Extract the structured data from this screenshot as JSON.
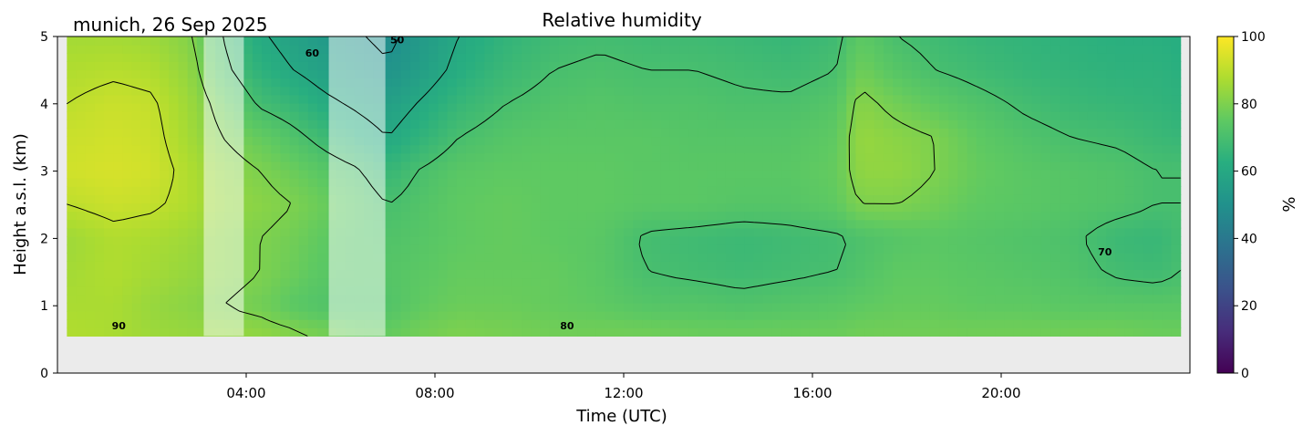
{
  "chart_data": {
    "type": "heatmap",
    "title": "Relative humidity",
    "subtitle": "munich, 26 Sep 2025",
    "xlabel": "Time (UTC)",
    "ylabel": "Height a.s.l. (km)",
    "xlim_hours": [
      0,
      24
    ],
    "ylim_km": [
      0,
      5
    ],
    "x_ticks_hours": [
      4,
      8,
      12,
      16,
      20
    ],
    "x_tick_labels": [
      "04:00",
      "08:00",
      "12:00",
      "16:00",
      "20:00"
    ],
    "y_ticks": [
      0,
      1,
      2,
      3,
      4,
      5
    ],
    "y_tick_labels": [
      "0",
      "1",
      "2",
      "3",
      "4",
      "5"
    ],
    "data_bottom_km": 0.55,
    "data_start_hour": 0.2,
    "data_end_hour": 23.8,
    "colorbar": {
      "label": "%",
      "range": [
        0,
        100
      ],
      "ticks": [
        0,
        20,
        40,
        60,
        80,
        100
      ],
      "tick_labels": [
        "0",
        "20",
        "40",
        "60",
        "80",
        "100"
      ],
      "colormap": "viridis"
    },
    "contour_levels": [
      50,
      60,
      70,
      80,
      90
    ],
    "contour_labels": [
      {
        "text": "90",
        "hour": 1.3,
        "km": 0.65
      },
      {
        "text": "80",
        "hour": 10.8,
        "km": 0.65
      },
      {
        "text": "60",
        "hour": 5.4,
        "km": 4.7
      },
      {
        "text": "50",
        "hour": 7.2,
        "km": 4.9
      },
      {
        "text": "70",
        "hour": 22.2,
        "km": 1.75
      }
    ],
    "masked_periods_hours": [
      [
        3.1,
        3.95
      ],
      [
        5.75,
        6.95
      ]
    ],
    "rh_samples": {
      "hours": [
        0.2,
        1.2,
        2.0,
        2.8,
        3.5,
        4.3,
        5.0,
        5.6,
        6.3,
        7.0,
        7.6,
        8.5,
        9.5,
        10.5,
        11.5,
        12.5,
        13.5,
        14.5,
        15.5,
        16.5,
        17.0,
        17.8,
        18.6,
        19.5,
        20.5,
        21.5,
        22.5,
        23.3,
        23.8
      ],
      "heights_km": [
        0.6,
        1.0,
        1.5,
        2.0,
        2.5,
        3.0,
        3.5,
        4.0,
        4.5,
        5.0
      ],
      "values": [
        [
          88,
          87,
          85,
          84,
          84,
          83,
          81,
          79,
          77,
          76,
          78,
          80,
          79,
          78,
          78,
          78,
          77,
          77,
          77,
          77,
          78,
          78,
          78,
          78,
          78,
          78,
          78,
          77,
          77
        ],
        [
          87,
          87,
          84,
          82,
          80,
          78,
          74,
          72,
          72,
          72,
          75,
          77,
          77,
          76,
          75,
          73,
          73,
          72,
          73,
          74,
          75,
          76,
          76,
          75,
          75,
          74,
          74,
          74,
          74
        ],
        [
          86,
          88,
          86,
          84,
          82,
          80,
          77,
          74,
          73,
          73,
          74,
          76,
          76,
          76,
          74,
          70,
          69,
          68,
          69,
          70,
          72,
          75,
          75,
          74,
          73,
          72,
          69,
          68,
          70
        ],
        [
          85,
          88,
          87,
          85,
          82,
          80,
          78,
          75,
          73,
          72,
          73,
          75,
          76,
          75,
          74,
          69,
          68,
          67,
          68,
          69,
          71,
          73,
          74,
          73,
          72,
          71,
          67,
          66,
          69
        ],
        [
          90,
          92,
          91,
          88,
          84,
          82,
          80,
          77,
          74,
          70,
          72,
          75,
          76,
          75,
          75,
          74,
          74,
          73,
          73,
          75,
          80,
          80,
          78,
          75,
          74,
          73,
          72,
          70,
          70
        ],
        [
          93,
          94,
          93,
          88,
          83,
          80,
          77,
          74,
          71,
          66,
          70,
          74,
          75,
          75,
          75,
          74,
          74,
          74,
          74,
          76,
          83,
          83,
          80,
          76,
          74,
          73,
          72,
          70,
          70
        ],
        [
          92,
          93,
          92,
          86,
          80,
          76,
          72,
          68,
          64,
          60,
          64,
          70,
          73,
          74,
          74,
          74,
          73,
          73,
          73,
          75,
          84,
          82,
          80,
          75,
          72,
          70,
          69,
          67,
          66
        ],
        [
          90,
          92,
          91,
          85,
          77,
          69,
          66,
          62,
          59,
          56,
          60,
          66,
          70,
          72,
          73,
          72,
          72,
          71,
          71,
          73,
          82,
          78,
          75,
          72,
          69,
          67,
          66,
          65,
          64
        ],
        [
          88,
          89,
          88,
          83,
          72,
          64,
          60,
          57,
          54,
          51,
          55,
          62,
          67,
          70,
          71,
          70,
          70,
          69,
          68,
          70,
          78,
          73,
          70,
          68,
          66,
          65,
          64,
          64,
          63
        ],
        [
          86,
          86,
          85,
          81,
          70,
          61,
          57,
          54,
          51,
          48,
          53,
          60,
          65,
          68,
          69,
          68,
          68,
          67,
          66,
          68,
          75,
          70,
          68,
          66,
          65,
          64,
          63,
          63,
          62
        ]
      ]
    }
  }
}
